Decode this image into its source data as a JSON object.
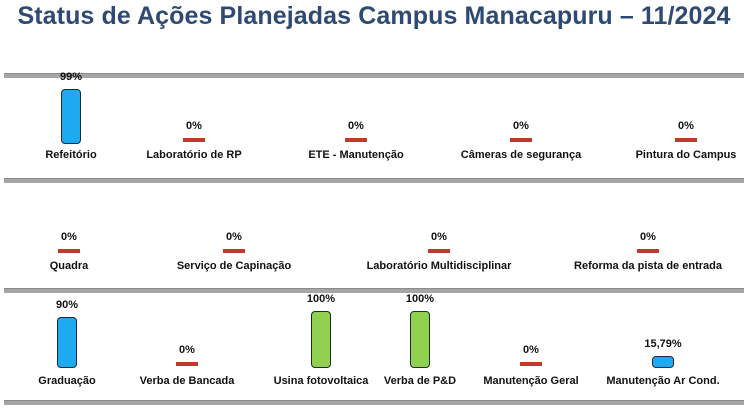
{
  "title": "Status de Ações Planejadas Campus Manacapuru – 11/2024",
  "colors": {
    "title": "#2f4a72",
    "blue": "#1eaaf1",
    "green": "#92d050",
    "zero": "#c0392b",
    "divider": "#a6a6a6"
  },
  "chart_data": [
    {
      "type": "bar",
      "title": "",
      "ylim": [
        0,
        100
      ],
      "unit": "%",
      "categories": [
        "Refeitório",
        "Laboratório de RP",
        "ETE - Manutenção",
        "Câmeras de segurança",
        "Pintura do Campus"
      ],
      "values": [
        99,
        0,
        0,
        0,
        0
      ],
      "labels": [
        "99%",
        "0%",
        "0%",
        "0%",
        "0%"
      ],
      "bar_colors": [
        "blue",
        "zero",
        "zero",
        "zero",
        "zero"
      ]
    },
    {
      "type": "bar",
      "title": "",
      "ylim": [
        0,
        100
      ],
      "unit": "%",
      "categories": [
        "Quadra",
        "Serviço de Capinação",
        "Laboratório Multidisciplinar",
        "Reforma da pista de entrada"
      ],
      "values": [
        0,
        0,
        0,
        0
      ],
      "labels": [
        "0%",
        "0%",
        "0%",
        "0%"
      ],
      "bar_colors": [
        "zero",
        "zero",
        "zero",
        "zero"
      ]
    },
    {
      "type": "bar",
      "title": "",
      "ylim": [
        0,
        100
      ],
      "unit": "%",
      "categories": [
        "Graduação",
        "Verba de Bancada",
        "Usina fotovoltaica",
        "Verba de P&D",
        "Manutenção Geral",
        "Manutenção Ar Cond."
      ],
      "values": [
        90,
        0,
        100,
        100,
        0,
        15.79
      ],
      "labels": [
        "90%",
        "0%",
        "100%",
        "100%",
        "0%",
        "15,79%"
      ],
      "bar_colors": [
        "blue",
        "zero",
        "green",
        "green",
        "zero",
        "blue"
      ]
    }
  ]
}
